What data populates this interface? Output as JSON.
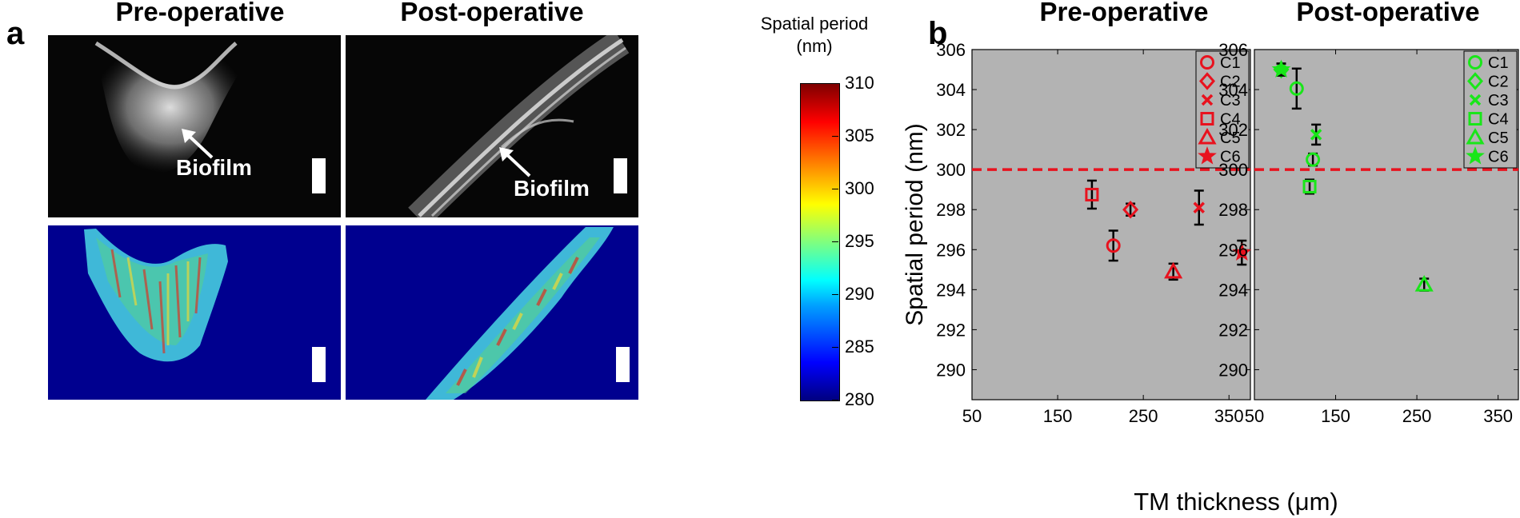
{
  "panel_a": {
    "letter": "a",
    "pre_title": "Pre-operative",
    "post_title": "Post-operative",
    "pre_label": "Biofilm",
    "post_label": "Biofilm",
    "colorbar": {
      "title_line1": "Spatial period",
      "title_line2": "(nm)",
      "ticks": [
        "310",
        "305",
        "300",
        "295",
        "290",
        "285",
        "280"
      ],
      "min": 280,
      "max": 310
    }
  },
  "panel_b": {
    "letter": "b",
    "pre_title": "Pre-operative",
    "post_title": "Post-operative"
  },
  "chart_data": [
    {
      "type": "scatter",
      "title": "Pre-operative",
      "xlabel": "TM thickness (μm)",
      "ylabel": "Spatial period (nm)",
      "xlim": [
        50,
        375
      ],
      "ylim": [
        288.5,
        306
      ],
      "xticks": [
        "50",
        "150",
        "250",
        "350"
      ],
      "yticks": [
        "290",
        "292",
        "294",
        "296",
        "298",
        "300",
        "302",
        "304",
        "306"
      ],
      "background": "#b3b3b3",
      "grid": false,
      "reference_line": 300,
      "reference_color": "#e8121e",
      "marker_color": "#e8121e",
      "legend_position": "top-right",
      "series": [
        {
          "name": "C1",
          "marker": "circle",
          "points": [
            {
              "x": 215,
              "y": 296.2,
              "err": 0.75
            }
          ]
        },
        {
          "name": "C2",
          "marker": "diamond",
          "points": [
            {
              "x": 235,
              "y": 298.0,
              "err": 0.3
            }
          ]
        },
        {
          "name": "C3",
          "marker": "x",
          "points": [
            {
              "x": 315,
              "y": 298.1,
              "err": 0.85
            }
          ]
        },
        {
          "name": "C4",
          "marker": "square",
          "points": [
            {
              "x": 190,
              "y": 298.75,
              "err": 0.7
            }
          ]
        },
        {
          "name": "C5",
          "marker": "triangle",
          "points": [
            {
              "x": 285,
              "y": 294.9,
              "err": 0.4
            }
          ]
        },
        {
          "name": "C6",
          "marker": "star",
          "points": [
            {
              "x": 365,
              "y": 295.85,
              "err": 0.6
            }
          ]
        }
      ]
    },
    {
      "type": "scatter",
      "title": "Post-operative",
      "xlabel": "TM thickness (μm)",
      "ylabel": "",
      "xlim": [
        50,
        375
      ],
      "ylim": [
        288.5,
        306
      ],
      "xticks": [
        "50",
        "150",
        "250",
        "350"
      ],
      "yticks": [
        "290",
        "292",
        "294",
        "296",
        "298",
        "300",
        "302",
        "304",
        "306"
      ],
      "background": "#b3b3b3",
      "grid": false,
      "reference_line": 300,
      "reference_color": "#e8121e",
      "marker_color": "#19e619",
      "legend_position": "top-right",
      "series": [
        {
          "name": "C1",
          "marker": "circle",
          "points": [
            {
              "x": 102,
              "y": 304.05,
              "err": 1.0
            },
            {
              "x": 122,
              "y": 300.5,
              "err": 0.3
            }
          ]
        },
        {
          "name": "C2",
          "marker": "diamond",
          "points": [
            {
              "x": 83,
              "y": 305.0,
              "err": 0.3
            }
          ]
        },
        {
          "name": "C3",
          "marker": "x",
          "points": [
            {
              "x": 126,
              "y": 301.75,
              "err": 0.5
            }
          ]
        },
        {
          "name": "C4",
          "marker": "square",
          "points": [
            {
              "x": 118,
              "y": 299.15,
              "err": 0.35
            }
          ]
        },
        {
          "name": "C5",
          "marker": "triangle",
          "points": [
            {
              "x": 259,
              "y": 294.25,
              "err": 0.3
            }
          ]
        },
        {
          "name": "C6",
          "marker": "star",
          "points": [
            {
              "x": 83,
              "y": 305.0,
              "err": 0.3
            }
          ]
        }
      ]
    }
  ]
}
